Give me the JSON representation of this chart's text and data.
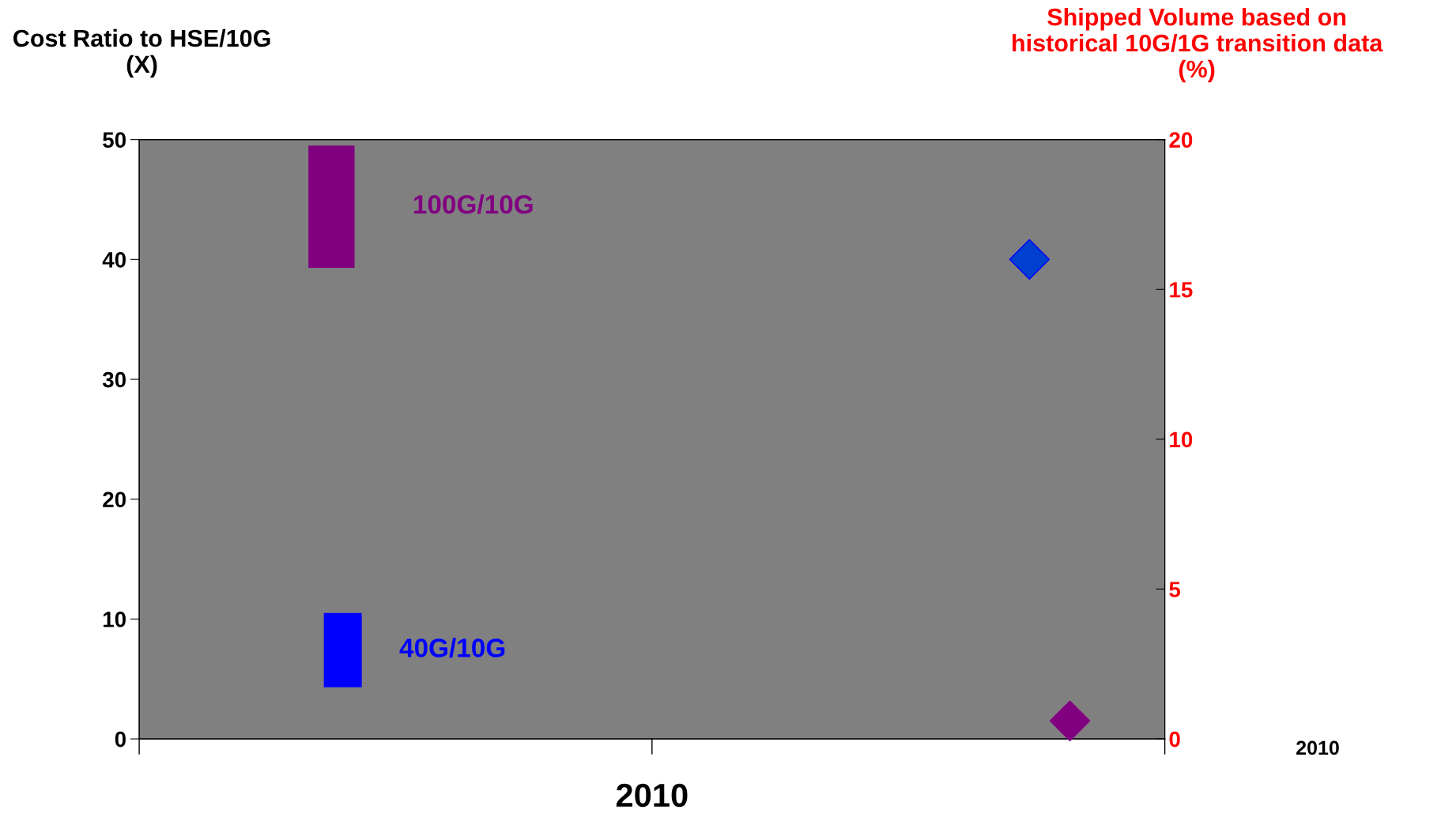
{
  "chart_data": {
    "type": "bar",
    "ylabel": "Cost Ratio to HSE/10G\n(X)",
    "y2label": "Shipped Volume based on\nhistorical 10G/1G transition data\n(%)",
    "xlabel": "2010",
    "annotations": [
      "2010"
    ],
    "categories": [
      null,
      null
    ],
    "ylim": [
      0,
      50
    ],
    "yticks": [
      0,
      10,
      20,
      30,
      40,
      50
    ],
    "y2lim": [
      0,
      20
    ],
    "y2ticks": [
      0,
      5,
      10,
      15,
      20
    ],
    "series": [
      {
        "name": "100G/10G",
        "color": "#800080",
        "base": [
          39.3,
          null
        ],
        "values": [
          10.2,
          null
        ]
      },
      {
        "name": "40G/10G",
        "color": "#0000ff",
        "base": [
          4.3,
          null
        ],
        "values": [
          6.2,
          null
        ]
      },
      {
        "type": "scatter",
        "axis": "y2",
        "marker": "diamond",
        "color": "#0040d0",
        "values": [
          null,
          16
        ]
      },
      {
        "type": "scatter",
        "axis": "y2",
        "marker": "diamond",
        "color": "#800080",
        "values": [
          null,
          0.6
        ]
      }
    ]
  }
}
